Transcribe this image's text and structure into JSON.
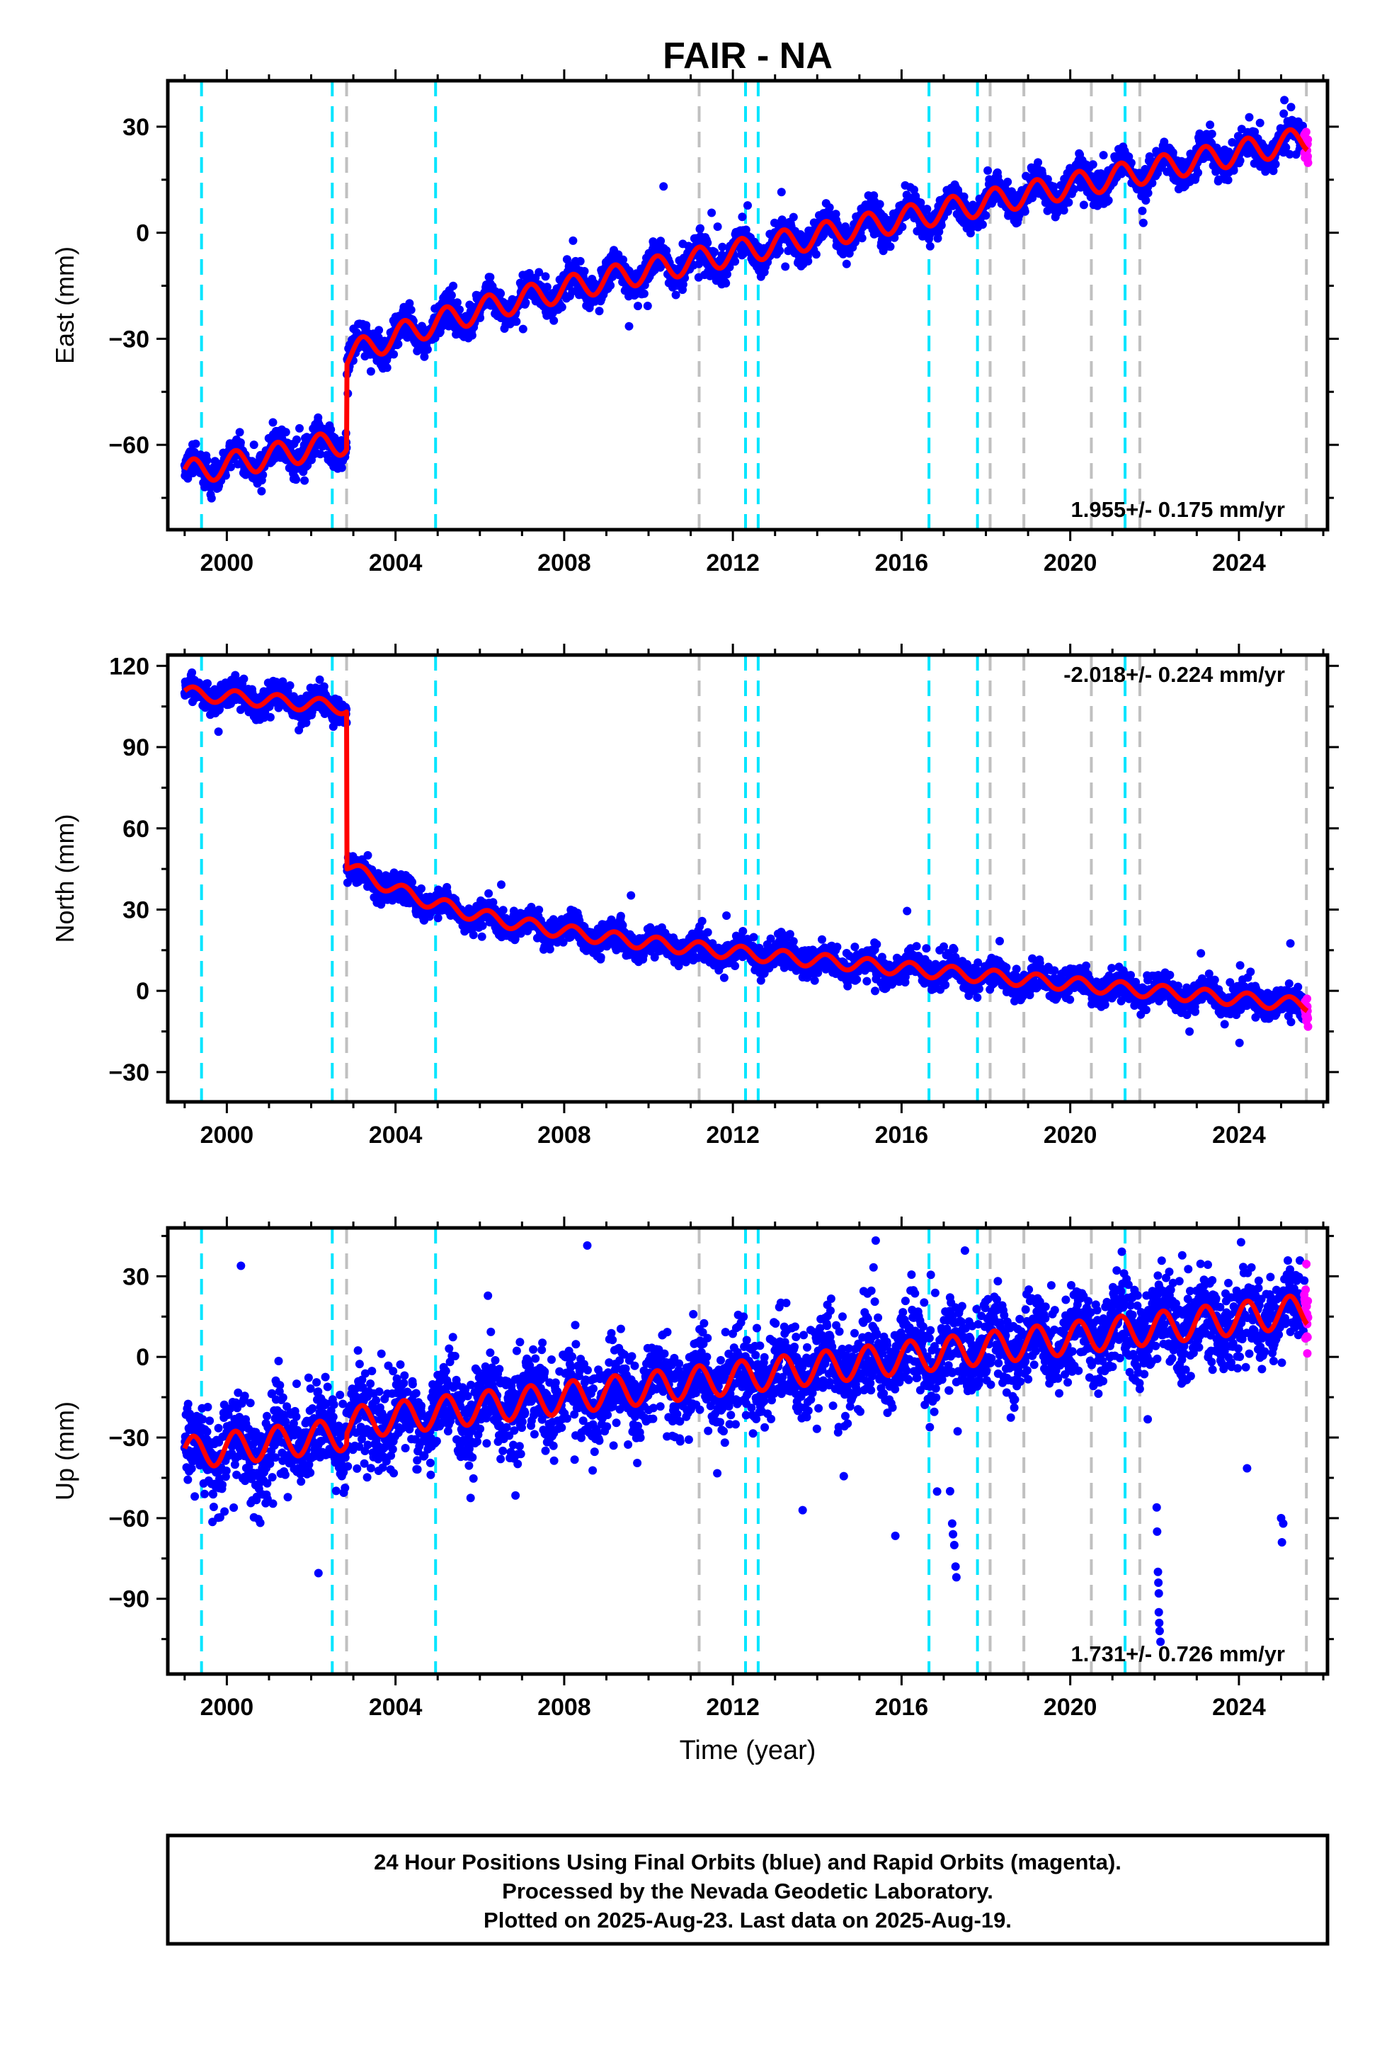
{
  "title": "FAIR - NA",
  "x_axis_label": "Time (year)",
  "footer_lines": [
    "24 Hour Positions Using Final Orbits (blue) and Rapid Orbits (magenta).",
    "Processed by the Nevada Geodetic Laboratory.",
    "Plotted on 2025-Aug-23. Last data on 2025-Aug-19."
  ],
  "colors": {
    "final_orbits": "#0000ff",
    "rapid_orbits": "#ff00ff",
    "model": "#ff0000",
    "equipment_change_lines": "#00e5ff",
    "other_event_lines": "#c0c0c0"
  },
  "chart_data": [
    {
      "type": "scatter",
      "name": "east",
      "ylabel": "East (mm)",
      "xlim": [
        1998.6,
        2026.1
      ],
      "ylim": [
        -84,
        43
      ],
      "xticks": [
        2000,
        2004,
        2008,
        2012,
        2016,
        2020,
        2024
      ],
      "yticks": [
        -60,
        -30,
        0,
        30
      ],
      "rate_text": "1.955+/- 0.175 mm/yr",
      "rate_position": "bottom-right",
      "model": {
        "x0": 2000,
        "start": -65.7,
        "slope": 2.35,
        "amplitude": 3.6,
        "step_epoch": 2002.84,
        "step_size": 24,
        "postseismic_amplitude": 8,
        "postseismic_tau": 2.5
      },
      "scatter_sd": 2.2,
      "equipment_changes": [
        1999.4,
        2002.5,
        2004.95,
        2012.3,
        2012.6,
        2016.65,
        2017.8,
        2021.3
      ],
      "other_events": [
        2002.84,
        2011.2,
        2018.1,
        2018.9,
        2020.5,
        2021.65,
        2025.6
      ]
    },
    {
      "type": "scatter",
      "name": "north",
      "ylabel": "North (mm)",
      "xlim": [
        1998.6,
        2026.1
      ],
      "ylim": [
        -41,
        124
      ],
      "xticks": [
        2000,
        2004,
        2008,
        2012,
        2016,
        2020,
        2024
      ],
      "yticks": [
        -30,
        0,
        30,
        60,
        90,
        120
      ],
      "rate_text": "-2.018+/- 0.224 mm/yr",
      "rate_position": "top-right",
      "model": {
        "x0": 2000,
        "start": 108.6,
        "slope": -1.4,
        "amplitude": 2.5,
        "step_epoch": 2002.84,
        "step_size": -58,
        "postseismic_amplitude": -20,
        "postseismic_tau": 2.5
      },
      "scatter_sd": 2.5,
      "equipment_changes": [
        1999.4,
        2002.5,
        2004.95,
        2012.3,
        2012.6,
        2016.65,
        2017.8,
        2021.3
      ],
      "other_events": [
        2002.84,
        2011.2,
        2018.1,
        2018.9,
        2020.5,
        2021.65,
        2025.6
      ]
    },
    {
      "type": "scatter",
      "name": "up",
      "ylabel": "Up (mm)",
      "xlim": [
        1998.6,
        2026.1
      ],
      "ylim": [
        -118,
        48
      ],
      "xticks": [
        2000,
        2004,
        2008,
        2012,
        2016,
        2020,
        2024
      ],
      "yticks": [
        -90,
        -60,
        -30,
        0,
        30
      ],
      "rate_text": "1.731+/- 0.726 mm/yr",
      "rate_position": "bottom-right",
      "model": {
        "x0": 2000,
        "start": -34,
        "slope": 1.85,
        "amplitude": 6,
        "step_epoch": 2002.84,
        "step_size": 4,
        "postseismic_amplitude": 0,
        "postseismic_tau": 2.5
      },
      "scatter_sd": 8,
      "outliers": [
        {
          "x": 2017.15,
          "y": -50
        },
        {
          "x": 2017.2,
          "y": -62
        },
        {
          "x": 2017.25,
          "y": -70
        },
        {
          "x": 2017.28,
          "y": -78
        },
        {
          "x": 2017.3,
          "y": -82
        },
        {
          "x": 2017.22,
          "y": -66
        },
        {
          "x": 2022.05,
          "y": -56
        },
        {
          "x": 2022.06,
          "y": -65
        },
        {
          "x": 2022.08,
          "y": -80
        },
        {
          "x": 2022.1,
          "y": -88
        },
        {
          "x": 2022.1,
          "y": -95
        },
        {
          "x": 2022.12,
          "y": -102
        },
        {
          "x": 2022.14,
          "y": -106
        },
        {
          "x": 2022.09,
          "y": -84
        },
        {
          "x": 2022.11,
          "y": -99
        },
        {
          "x": 2025.0,
          "y": -60
        },
        {
          "x": 2025.05,
          "y": -62
        },
        {
          "x": 2025.02,
          "y": -69
        }
      ],
      "equipment_changes": [
        1999.4,
        2002.5,
        2004.95,
        2012.3,
        2012.6,
        2016.65,
        2017.8,
        2021.3
      ],
      "other_events": [
        2002.84,
        2011.2,
        2018.1,
        2018.9,
        2020.5,
        2021.65,
        2025.6
      ]
    }
  ]
}
